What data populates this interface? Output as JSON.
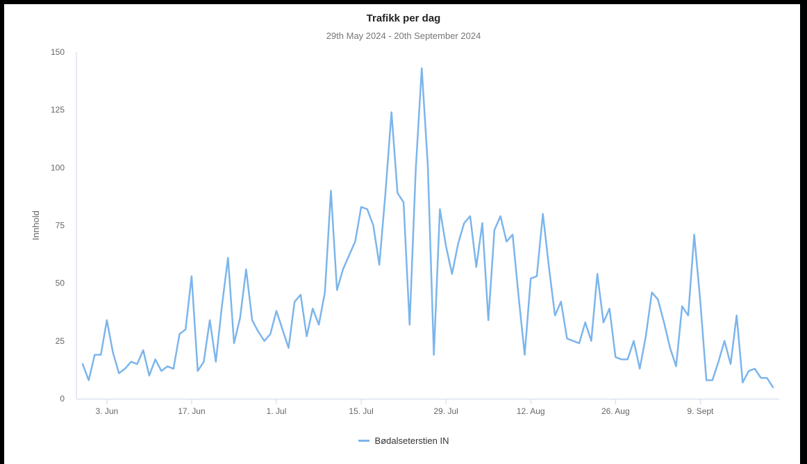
{
  "chart_data": {
    "type": "line",
    "title": "Trafikk per dag",
    "subtitle": "29th May 2024 - 20th September 2024",
    "ylabel": "Innhold",
    "xlabel": "",
    "ylim": [
      0,
      150
    ],
    "yticks": [
      0,
      25,
      50,
      75,
      100,
      125,
      150
    ],
    "x_start": "2024-05-30",
    "x_ticks": [
      {
        "label": "3. Jun",
        "date": "2024-06-03"
      },
      {
        "label": "17. Jun",
        "date": "2024-06-17"
      },
      {
        "label": "1. Jul",
        "date": "2024-07-01"
      },
      {
        "label": "15. Jul",
        "date": "2024-07-15"
      },
      {
        "label": "29. Jul",
        "date": "2024-07-29"
      },
      {
        "label": "12. Aug",
        "date": "2024-08-12"
      },
      {
        "label": "26. Aug",
        "date": "2024-08-26"
      },
      {
        "label": "9. Sept",
        "date": "2024-09-09"
      }
    ],
    "grid": false,
    "legend_position": "bottom-center",
    "series": [
      {
        "name": "Bødalseterstien IN",
        "color": "#7cb5ec",
        "values": [
          15,
          8,
          19,
          19,
          34,
          20,
          11,
          13,
          16,
          15,
          21,
          10,
          17,
          12,
          14,
          13,
          28,
          30,
          53,
          12,
          16,
          34,
          16,
          40,
          61,
          24,
          35,
          56,
          34,
          29,
          25,
          28,
          38,
          30,
          22,
          42,
          45,
          27,
          39,
          32,
          46,
          90,
          47,
          56,
          62,
          68,
          83,
          82,
          75,
          58,
          89,
          124,
          89,
          85,
          32,
          99,
          143,
          101,
          19,
          82,
          66,
          54,
          67,
          76,
          79,
          57,
          76,
          34,
          73,
          79,
          68,
          71,
          44,
          19,
          52,
          53,
          80,
          57,
          36,
          42,
          26,
          25,
          24,
          33,
          25,
          54,
          33,
          39,
          18,
          17,
          17,
          25,
          13,
          27,
          46,
          43,
          33,
          22,
          14,
          40,
          36,
          71,
          42,
          8,
          8,
          16,
          25,
          15,
          36,
          7,
          12,
          13,
          9,
          9,
          5
        ]
      }
    ]
  }
}
